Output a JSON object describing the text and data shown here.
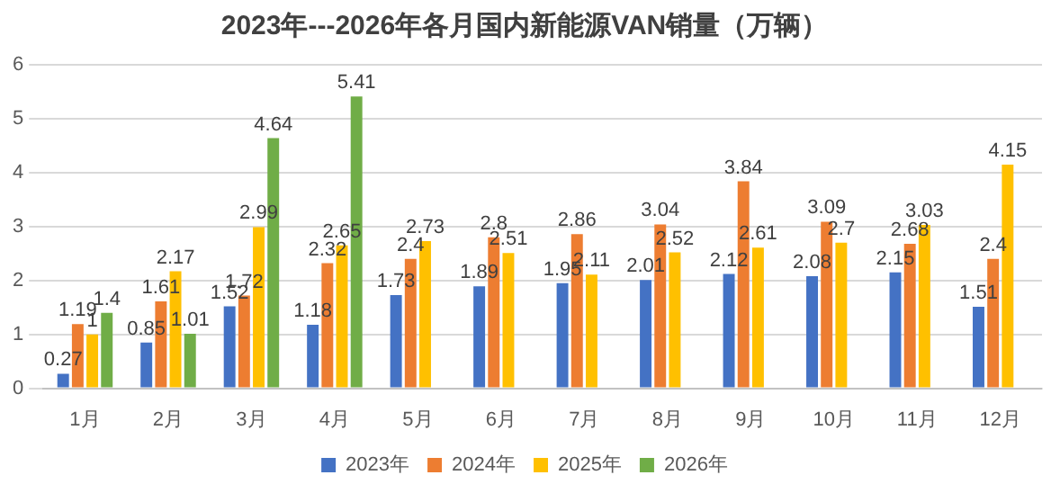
{
  "chart_data": {
    "type": "bar",
    "title": "2023年---2026年各月国内新能源VAN销量（万辆）",
    "categories": [
      "1月",
      "2月",
      "3月",
      "4月",
      "5月",
      "6月",
      "7月",
      "8月",
      "9月",
      "10月",
      "11月",
      "12月"
    ],
    "series": [
      {
        "name": "2023年",
        "color": "#4472c4",
        "values": [
          0.27,
          0.85,
          1.52,
          1.18,
          1.73,
          1.89,
          1.95,
          2.01,
          2.12,
          2.08,
          2.15,
          1.51
        ]
      },
      {
        "name": "2024年",
        "color": "#ed7d31",
        "values": [
          1.19,
          1.61,
          1.72,
          2.32,
          2.4,
          2.8,
          2.86,
          3.04,
          3.84,
          3.09,
          2.68,
          2.4
        ]
      },
      {
        "name": "2025年",
        "color": "#ffc000",
        "values": [
          1,
          2.17,
          2.99,
          2.65,
          2.73,
          2.51,
          2.11,
          2.52,
          2.61,
          2.7,
          3.03,
          4.15
        ]
      },
      {
        "name": "2026年",
        "color": "#70ad47",
        "values": [
          1.4,
          1.01,
          4.64,
          5.41,
          null,
          null,
          null,
          null,
          null,
          null,
          null,
          null
        ]
      }
    ],
    "ylim": [
      0,
      6
    ],
    "yticks": [
      0,
      1,
      2,
      3,
      4,
      5,
      6
    ],
    "grid": "y",
    "legend": "bottom",
    "data_labels": true
  }
}
